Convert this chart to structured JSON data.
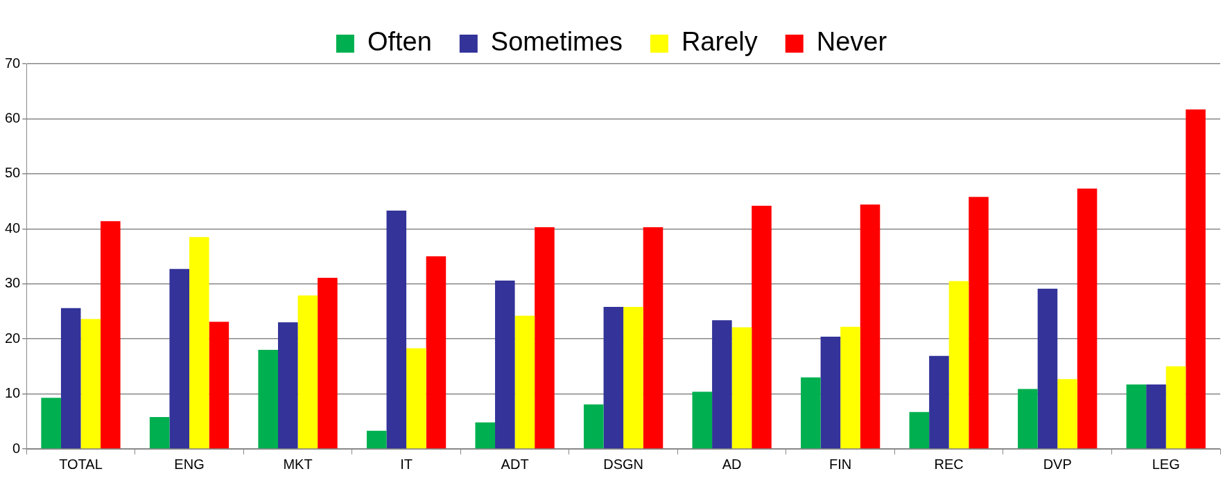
{
  "chart_data": {
    "type": "bar",
    "categories": [
      "TOTAL",
      "ENG",
      "MKT",
      "IT",
      "ADT",
      "DSGN",
      "AD",
      "FIN",
      "REC",
      "DVP",
      "LEG"
    ],
    "series": [
      {
        "name": "Often",
        "color": "#00b050",
        "values": [
          9.3,
          5.8,
          18,
          3.3,
          4.8,
          8.1,
          10.4,
          13,
          6.7,
          10.9,
          11.7
        ]
      },
      {
        "name": "Sometimes",
        "color": "#333399",
        "values": [
          25.6,
          32.7,
          23,
          43.3,
          30.6,
          25.8,
          23.4,
          20.4,
          16.9,
          29.1,
          11.7
        ]
      },
      {
        "name": "Rarely",
        "color": "#ffff00",
        "values": [
          23.6,
          38.5,
          27.9,
          18.3,
          24.2,
          25.8,
          22.1,
          22.2,
          30.5,
          12.7,
          15
        ]
      },
      {
        "name": "Never",
        "color": "#ff0000",
        "values": [
          41.4,
          23.1,
          31.1,
          35,
          40.3,
          40.3,
          44.2,
          44.4,
          45.8,
          47.3,
          61.7
        ]
      }
    ],
    "ylim": [
      0,
      70
    ],
    "yticks": [
      0,
      10,
      20,
      30,
      40,
      50,
      60,
      70
    ],
    "grid": "y",
    "legend": "top"
  }
}
